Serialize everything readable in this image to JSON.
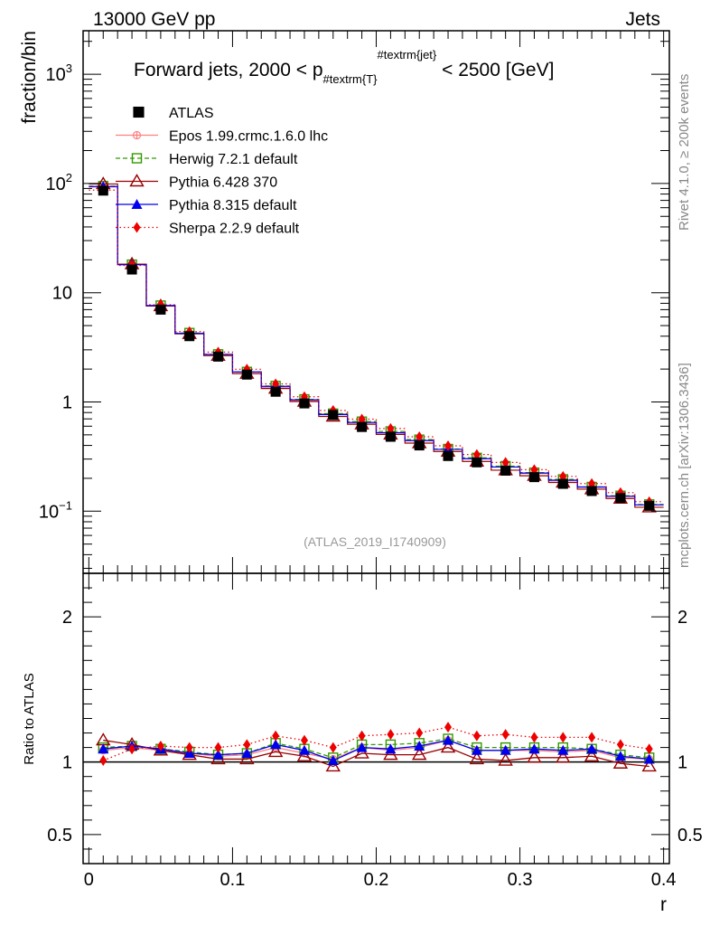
{
  "header": {
    "left": "13000 GeV pp",
    "right": "Jets"
  },
  "side_labels": {
    "rivet": "Rivet 4.1.0, ≥ 200k events",
    "mcplots": "mcplots.cern.ch [arXiv:1306.3436]"
  },
  "chart_data": {
    "type": "line",
    "title_main": "Forward jets, 2000 < p",
    "title_sub": "#textrm{T}",
    "title_sup": "#textrm{jet}",
    "title_tail": " < 2500 [GeV]",
    "analysis_id": "(ATLAS_2019_I1740909)",
    "ylabel": "fraction/bin",
    "ratio_ylabel": "Ratio to ATLAS",
    "xlabel": "r",
    "xlim": [
      -0.004,
      0.404
    ],
    "ylim_log": [
      0.027,
      2500
    ],
    "ratio_ylim": [
      0.3,
      2.3
    ],
    "x_ticks": [
      "0",
      "0.1",
      "0.2",
      "0.3",
      "0.4"
    ],
    "y_ticks": [
      "10^3",
      "10^2",
      "10",
      "1",
      "10^-1"
    ],
    "ratio_y_ticks": [
      "0.5",
      "1",
      "2"
    ],
    "x": [
      0.01,
      0.03,
      0.05,
      0.07,
      0.09,
      0.11,
      0.13,
      0.15,
      0.17,
      0.19,
      0.21,
      0.23,
      0.25,
      0.27,
      0.29,
      0.31,
      0.33,
      0.35,
      0.37,
      0.39
    ],
    "data": [
      86,
      16.3,
      7.0,
      4.0,
      2.6,
      1.78,
      1.24,
      0.97,
      0.76,
      0.59,
      0.48,
      0.4,
      0.32,
      0.28,
      0.235,
      0.205,
      0.178,
      0.153,
      0.132,
      0.112
    ],
    "series": [
      {
        "name": "Epos 1.99.crmc.1.6.0 lhc",
        "color": "#ff8080",
        "dash": "",
        "marker": "cross",
        "ratio": [
          1.08,
          1.1,
          1.08,
          1.06,
          1.04,
          1.05,
          1.1,
          1.06,
          1.02,
          1.1,
          1.08,
          1.1,
          1.15,
          1.08,
          1.08,
          1.08,
          1.07,
          1.08,
          1.03,
          1.02
        ]
      },
      {
        "name": "Herwig 7.2.1 default",
        "color": "#339900",
        "dash": "5,3",
        "marker": "open-square",
        "ratio": [
          1.1,
          1.11,
          1.09,
          1.07,
          1.05,
          1.06,
          1.13,
          1.09,
          1.03,
          1.12,
          1.12,
          1.13,
          1.16,
          1.1,
          1.1,
          1.1,
          1.1,
          1.09,
          1.05,
          1.03
        ]
      },
      {
        "name": "Pythia 6.428 370",
        "color": "#990000",
        "dash": "",
        "marker": "open-triangle",
        "ratio": [
          1.15,
          1.12,
          1.08,
          1.05,
          1.02,
          1.02,
          1.07,
          1.04,
          0.97,
          1.06,
          1.05,
          1.05,
          1.1,
          1.02,
          1.01,
          1.03,
          1.03,
          1.04,
          0.99,
          0.97
        ]
      },
      {
        "name": "Pythia 8.315 default",
        "color": "#0000ee",
        "dash": "",
        "marker": "filled-triangle",
        "ratio": [
          1.09,
          1.11,
          1.09,
          1.06,
          1.05,
          1.06,
          1.12,
          1.08,
          1.01,
          1.1,
          1.09,
          1.11,
          1.15,
          1.08,
          1.08,
          1.09,
          1.08,
          1.09,
          1.04,
          1.02
        ]
      },
      {
        "name": "Sherpa 2.2.9 default",
        "color": "#ee0000",
        "dash": "1.5,3",
        "marker": "filled-diamond",
        "ratio": [
          1.01,
          1.09,
          1.11,
          1.1,
          1.1,
          1.12,
          1.18,
          1.15,
          1.1,
          1.18,
          1.19,
          1.2,
          1.24,
          1.18,
          1.19,
          1.17,
          1.17,
          1.17,
          1.12,
          1.09
        ]
      }
    ],
    "data_label": "ATLAS"
  }
}
